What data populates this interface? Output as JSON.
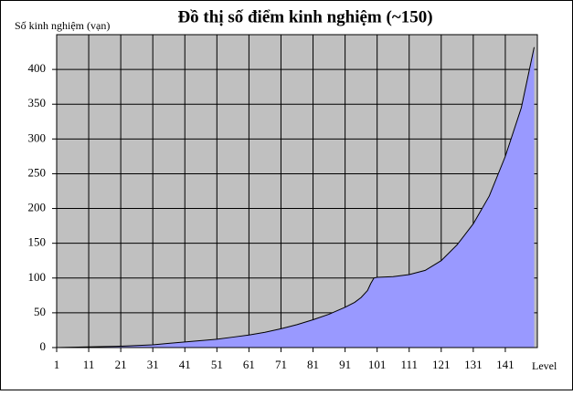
{
  "chart_data": {
    "type": "area",
    "title": "Đồ thị số điểm kinh nghiệm (~150)",
    "y_label": "Số kinh nghiệm (vạn)",
    "x_label": "Level",
    "x": [
      1,
      6,
      11,
      16,
      21,
      26,
      31,
      36,
      41,
      46,
      51,
      56,
      61,
      66,
      71,
      76,
      81,
      86,
      91,
      94,
      96,
      98,
      99,
      100,
      101,
      106,
      111,
      116,
      121,
      126,
      131,
      136,
      141,
      146,
      150
    ],
    "series": [
      {
        "name": "Số kinh nghiệm",
        "color": "#9999ff",
        "values": [
          0,
          0.5,
          1,
          1.5,
          2,
          3,
          4,
          6,
          8,
          10,
          12,
          15,
          18,
          22,
          27,
          33,
          40,
          48,
          58,
          65,
          72,
          82,
          92,
          100,
          101,
          102,
          105,
          111,
          125,
          148,
          178,
          218,
          275,
          345,
          432
        ]
      }
    ],
    "xlim": [
      1,
      151
    ],
    "ylim": [
      0,
      450
    ],
    "xticks": [
      1,
      11,
      21,
      31,
      41,
      51,
      61,
      71,
      81,
      91,
      101,
      111,
      121,
      131,
      141
    ],
    "yticks": [
      0,
      50,
      100,
      150,
      200,
      250,
      300,
      350,
      400
    ],
    "background": "#c0c0c0",
    "grid": true
  }
}
